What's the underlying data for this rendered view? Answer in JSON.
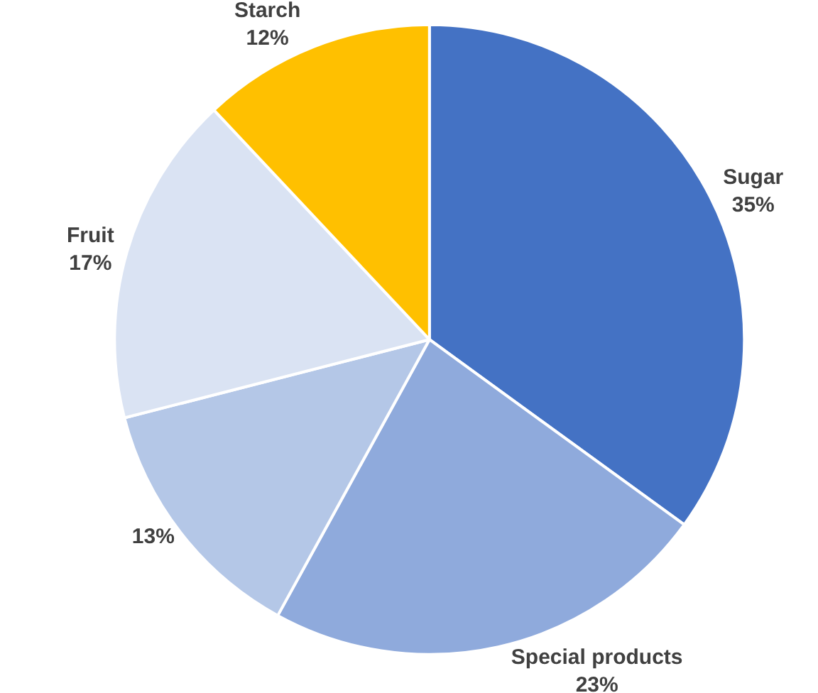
{
  "chart_data": {
    "type": "pie",
    "categories": [
      "Sugar",
      "Special products",
      null,
      "Fruit",
      "Starch"
    ],
    "values": [
      35,
      23,
      13,
      17,
      12
    ],
    "value_labels": [
      "35%",
      "23%",
      "13%",
      "17%",
      "12%"
    ],
    "colors": [
      "#4472c4",
      "#8faadc",
      "#b4c7e7",
      "#dae3f3",
      "#ffc000"
    ],
    "legend": false
  }
}
